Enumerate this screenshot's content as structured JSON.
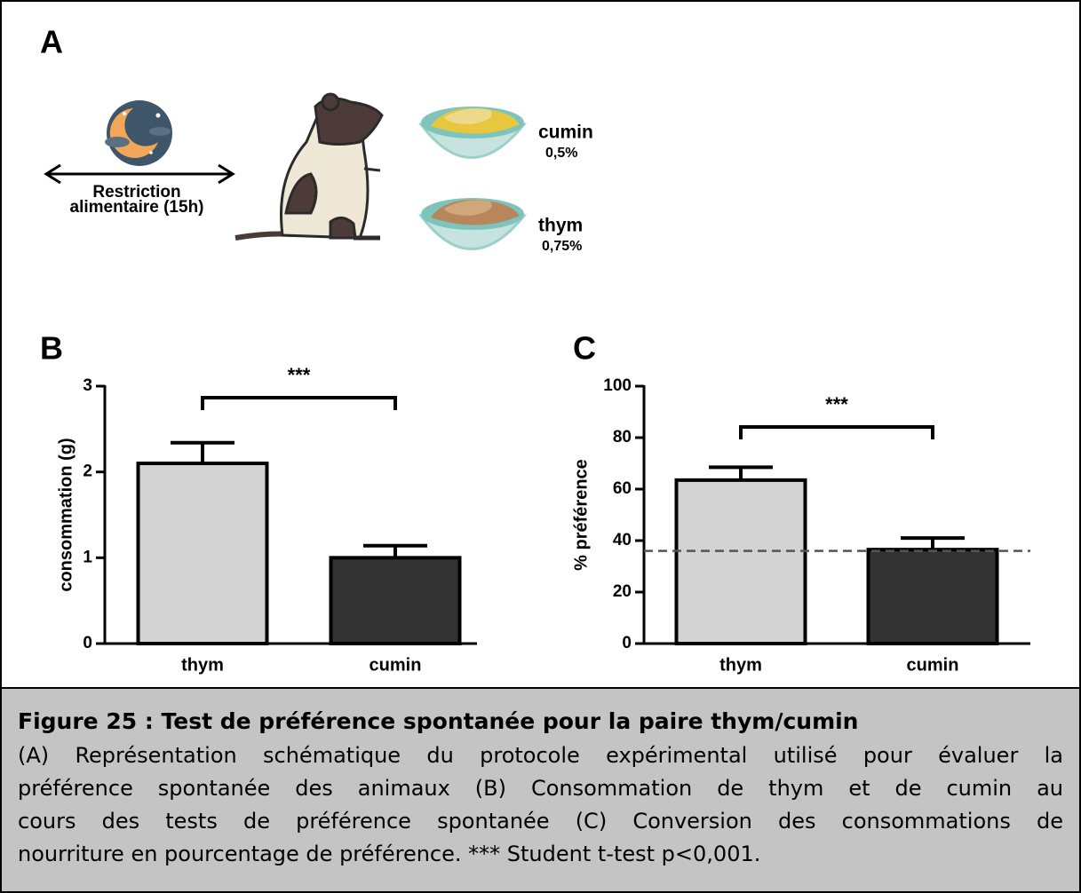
{
  "panel_a": {
    "letter": "A",
    "restriction_line1": "Restriction",
    "restriction_line2": "alimentaire (15h)",
    "food1_name": "cumin",
    "food1_dose": "0,5%",
    "food2_name": "thym",
    "food2_dose": "0,75%"
  },
  "chart_data": [
    {
      "type": "bar",
      "panel": "B",
      "ylabel": "consommation (g)",
      "categories": [
        "thym",
        "cumin"
      ],
      "values": [
        2.1,
        1.0
      ],
      "errors": [
        0.24,
        0.14
      ],
      "colors": [
        "#d3d3d3",
        "#333333"
      ],
      "ylim": [
        0,
        3
      ],
      "yticks": [
        0,
        1,
        2,
        3
      ],
      "annotation": "***"
    },
    {
      "type": "bar",
      "panel": "C",
      "ylabel": "% préférence",
      "categories": [
        "thym",
        "cumin"
      ],
      "values": [
        63.5,
        36.5
      ],
      "errors": [
        5,
        4.5
      ],
      "colors": [
        "#d3d3d3",
        "#333333"
      ],
      "ylim": [
        0,
        100
      ],
      "yticks": [
        0,
        20,
        40,
        60,
        80,
        100
      ],
      "reference_line": 36,
      "annotation": "***"
    }
  ],
  "caption": {
    "title": "Figure 25 : Test de préférence spontanée pour la paire thym/cumin",
    "lines": [
      "(A) Représentation schématique du protocole expérimental utilisé pour évaluer la",
      "préférence spontanée des animaux (B) Consommation de thym et de cumin au",
      "cours des tests de préférence spontanée (C) Conversion des consommations de",
      "nourriture en pourcentage de préférence. *** Student t-test p<0,001."
    ]
  }
}
